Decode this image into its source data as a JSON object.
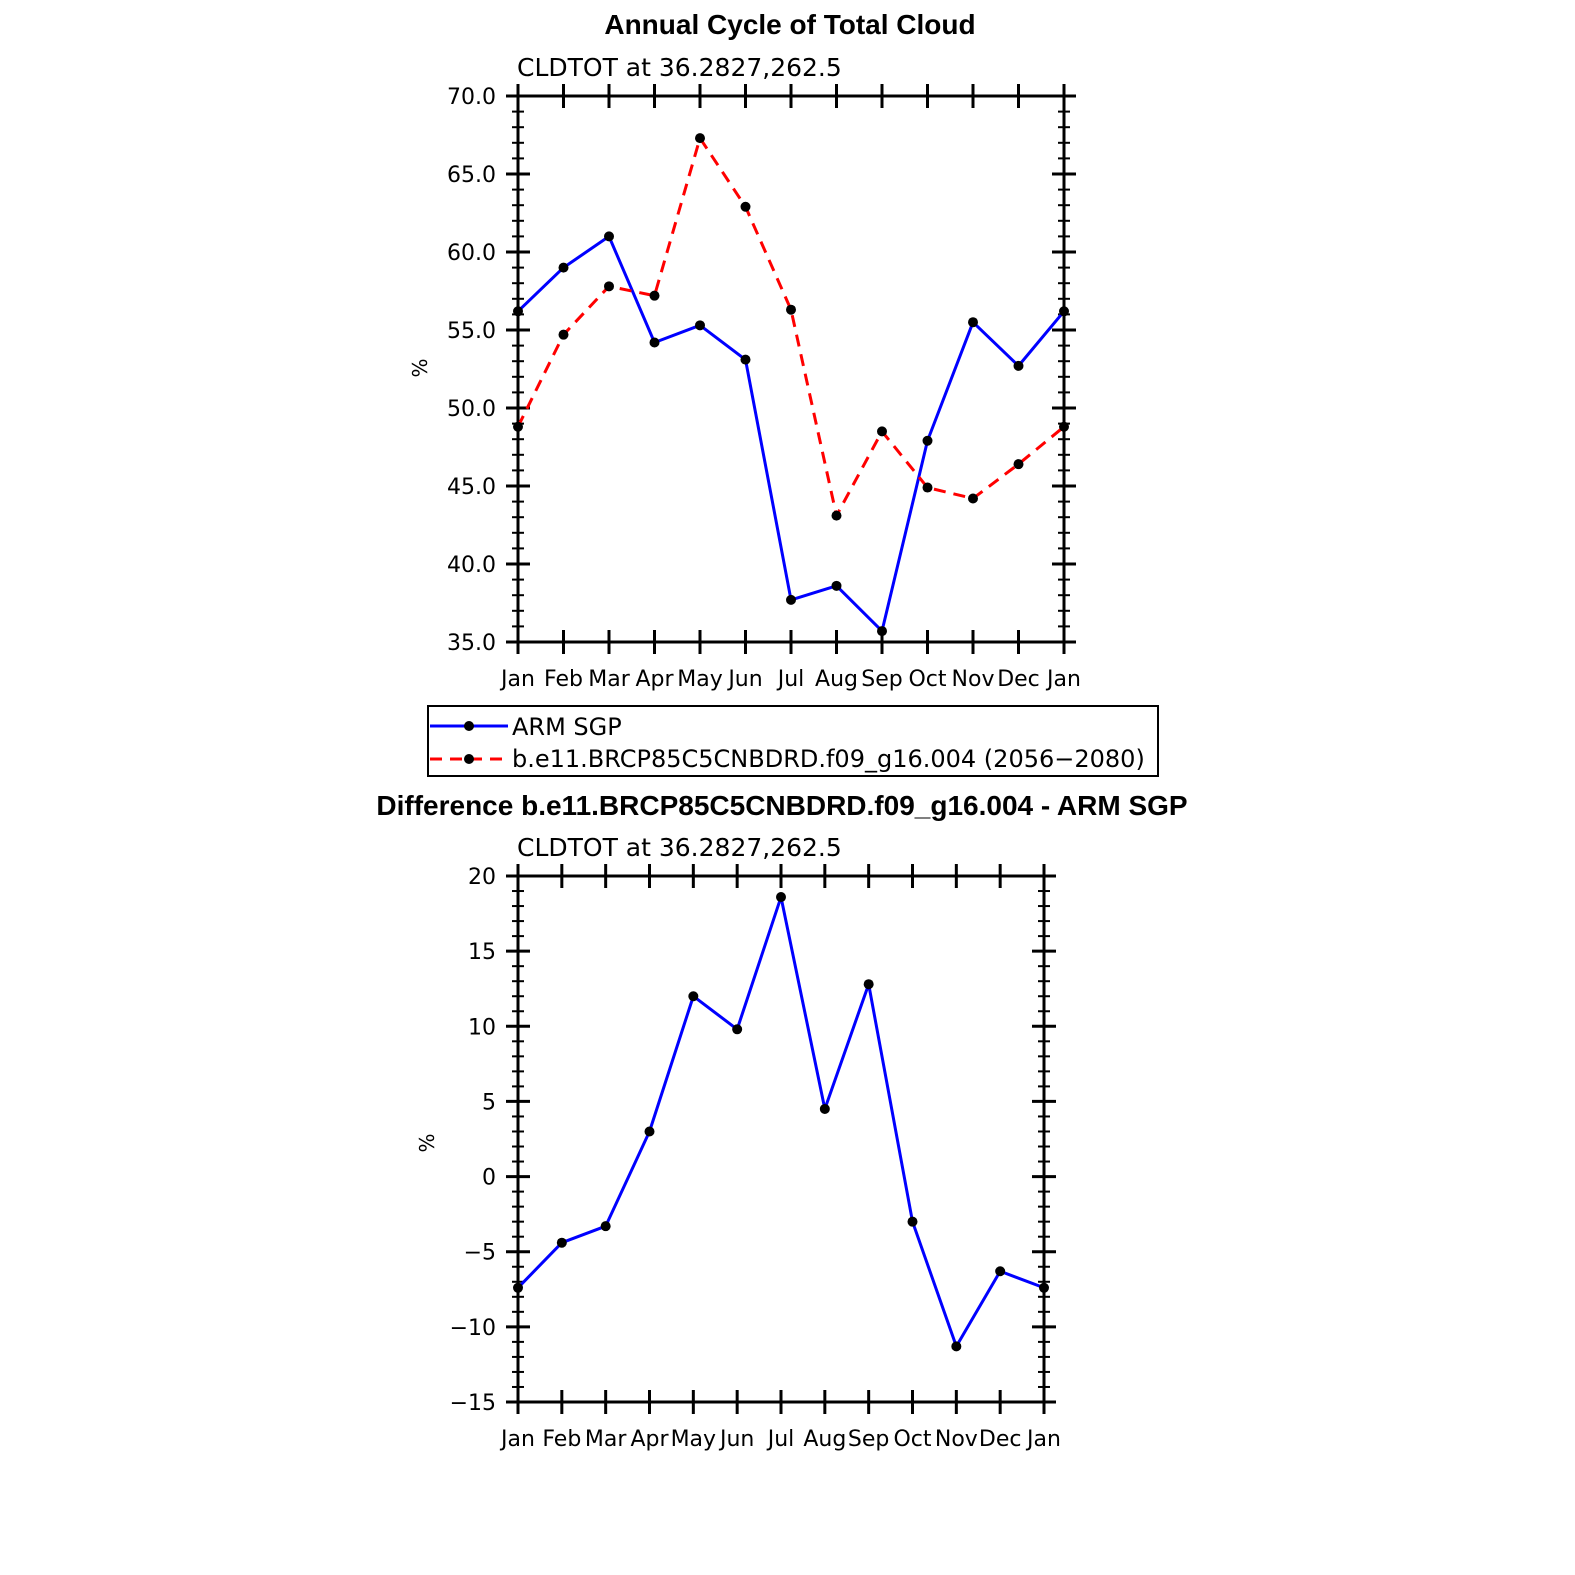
{
  "chart_data": [
    {
      "type": "line",
      "title": "Annual Cycle of Total Cloud",
      "subtitle": "CLDTOT at 36.2827,262.5",
      "ylabel": "%",
      "ylim": [
        35,
        70
      ],
      "yticks": [
        "35.0",
        "40.0",
        "45.0",
        "50.0",
        "55.0",
        "60.0",
        "65.0",
        "70.0"
      ],
      "categories": [
        "Jan",
        "Feb",
        "Mar",
        "Apr",
        "May",
        "Jun",
        "Jul",
        "Aug",
        "Sep",
        "Oct",
        "Nov",
        "Dec",
        "Jan"
      ],
      "legend_position": "below",
      "series": [
        {
          "name": "ARM SGP",
          "color": "#0000ff",
          "dash": "solid",
          "values": [
            56.2,
            59.0,
            61.0,
            54.2,
            55.3,
            53.1,
            37.7,
            38.6,
            35.7,
            47.9,
            55.5,
            52.7,
            56.2
          ]
        },
        {
          "name": "b.e11.BRCP85C5CNBDRD.f09_g16.004 (2056−2080)",
          "color": "#ff0000",
          "dash": "dashed",
          "values": [
            48.8,
            54.7,
            57.8,
            57.2,
            67.3,
            62.9,
            56.3,
            43.1,
            48.5,
            44.9,
            44.2,
            46.4,
            48.8
          ]
        }
      ]
    },
    {
      "type": "line",
      "title": "Difference b.e11.BRCP85C5CNBDRD.f09_g16.004 - ARM SGP",
      "subtitle": "CLDTOT at 36.2827,262.5",
      "ylabel": "%",
      "ylim": [
        -15,
        20
      ],
      "yticks": [
        "−15",
        "−10",
        "−5",
        "0",
        "5",
        "10",
        "15",
        "20"
      ],
      "categories": [
        "Jan",
        "Feb",
        "Mar",
        "Apr",
        "May",
        "Jun",
        "Jul",
        "Aug",
        "Sep",
        "Oct",
        "Nov",
        "Dec",
        "Jan"
      ],
      "series": [
        {
          "color": "#0000ff",
          "dash": "solid",
          "values": [
            -7.4,
            -4.4,
            -3.3,
            3.0,
            12.0,
            9.8,
            18.6,
            4.5,
            12.8,
            -3.0,
            -11.3,
            -6.3,
            -7.4
          ]
        }
      ]
    }
  ]
}
